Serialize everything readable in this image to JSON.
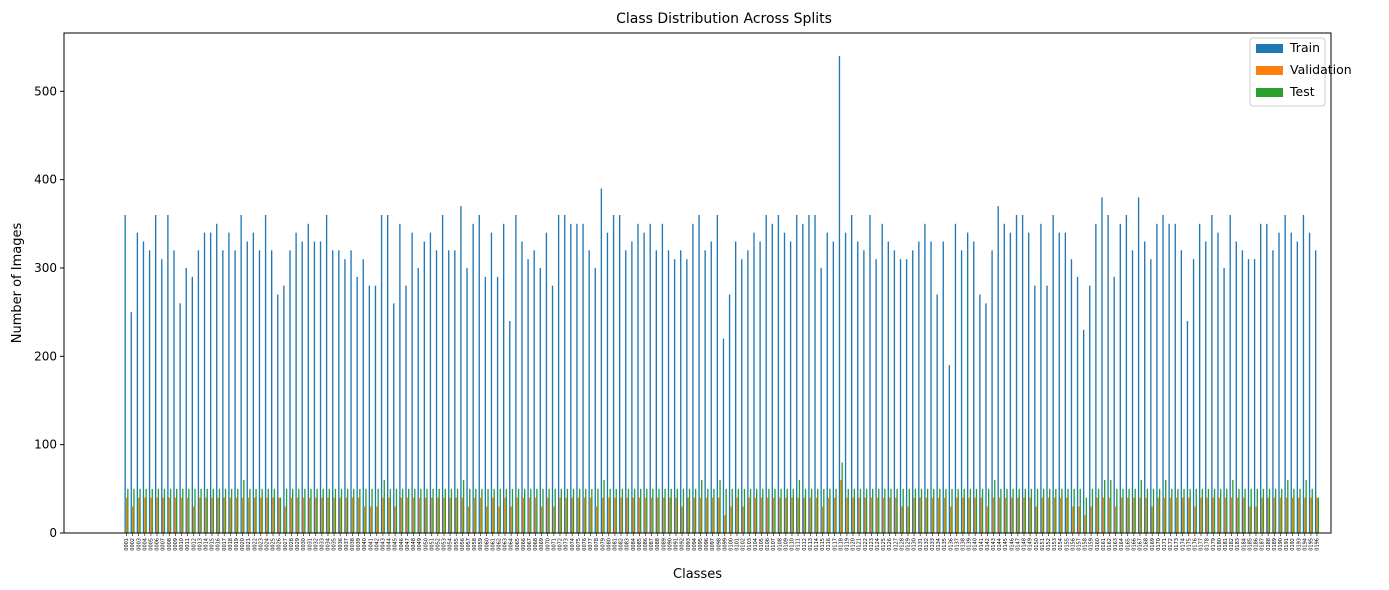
{
  "chart_data": {
    "type": "bar",
    "title": "Class Distribution Across Splits",
    "xlabel": "Classes",
    "ylabel": "Number of Images",
    "ylim": [
      0,
      566
    ],
    "yticks": [
      0,
      100,
      200,
      300,
      400,
      500
    ],
    "grid": false,
    "legend_position": "top-right",
    "colors": {
      "Train": "#1f77b4",
      "Validation": "#ff7f0e",
      "Test": "#2ca02c"
    },
    "categories": [
      "0001",
      "0002",
      "0003",
      "0004",
      "0005",
      "0006",
      "0007",
      "0008",
      "0009",
      "0010",
      "0011",
      "0012",
      "0013",
      "0014",
      "0015",
      "0016",
      "0017",
      "0018",
      "0019",
      "0020",
      "0021",
      "0022",
      "0023",
      "0024",
      "0025",
      "0026",
      "0027",
      "0028",
      "0029",
      "0030",
      "0031",
      "0032",
      "0033",
      "0034",
      "0035",
      "0036",
      "0037",
      "0038",
      "0039",
      "0040",
      "0041",
      "0042",
      "0043",
      "0044",
      "0045",
      "0046",
      "0047",
      "0048",
      "0049",
      "0050",
      "0051",
      "0052",
      "0053",
      "0054",
      "0055",
      "0056",
      "0057",
      "0058",
      "0059",
      "0060",
      "0061",
      "0062",
      "0063",
      "0064",
      "0065",
      "0066",
      "0067",
      "0068",
      "0069",
      "0070",
      "0071",
      "0072",
      "0073",
      "0074",
      "0075",
      "0076",
      "0077",
      "0078",
      "0079",
      "0080",
      "0081",
      "0082",
      "0083",
      "0084",
      "0085",
      "0086",
      "0087",
      "0088",
      "0089",
      "0090",
      "0091",
      "0092",
      "0093",
      "0094",
      "0095",
      "0096",
      "0097",
      "0098",
      "0099",
      "0100",
      "0101",
      "0102",
      "0103",
      "0104",
      "0105",
      "0106",
      "0107",
      "0108",
      "0109",
      "0110",
      "0111",
      "0112",
      "0113",
      "0114",
      "0115",
      "0116",
      "0117",
      "0118",
      "0119",
      "0120",
      "0121",
      "0122",
      "0123",
      "0124",
      "0125",
      "0126",
      "0127",
      "0128",
      "0129",
      "0130",
      "0131",
      "0132",
      "0133",
      "0134",
      "0135",
      "0136",
      "0137",
      "0138",
      "0139",
      "0140",
      "0141",
      "0142",
      "0143",
      "0144",
      "0145",
      "0146",
      "0147",
      "0148",
      "0149",
      "0150",
      "0151",
      "0152",
      "0153",
      "0154",
      "0155",
      "0156",
      "0157",
      "0158",
      "0159",
      "0160",
      "0161",
      "0162",
      "0163",
      "0164",
      "0165",
      "0166",
      "0167",
      "0168",
      "0169",
      "0170",
      "0171",
      "0172",
      "0173",
      "0174",
      "0175",
      "0176",
      "0177",
      "0178",
      "0179",
      "0180",
      "0181",
      "0182",
      "0183",
      "0184",
      "0185",
      "0186",
      "0187",
      "0188",
      "0189",
      "0190",
      "0191",
      "0192",
      "0193",
      "0194",
      "0195",
      "0196"
    ],
    "series": [
      {
        "name": "Train",
        "values": [
          360,
          250,
          340,
          330,
          320,
          360,
          310,
          360,
          320,
          260,
          300,
          290,
          320,
          340,
          340,
          350,
          320,
          340,
          320,
          360,
          330,
          340,
          320,
          360,
          320,
          270,
          280,
          320,
          340,
          330,
          350,
          330,
          330,
          360,
          320,
          320,
          310,
          320,
          290,
          310,
          280,
          280,
          360,
          360,
          260,
          350,
          280,
          340,
          300,
          330,
          340,
          320,
          360,
          320,
          320,
          370,
          300,
          350,
          360,
          290,
          340,
          290,
          350,
          240,
          360,
          330,
          310,
          320,
          300,
          340,
          280,
          360,
          360,
          350,
          350,
          350,
          320,
          300,
          390,
          340,
          360,
          360,
          320,
          330,
          350,
          340,
          350,
          320,
          350,
          320,
          310,
          320,
          310,
          350,
          360,
          320,
          330,
          360,
          220,
          270,
          330,
          310,
          320,
          340,
          330,
          360,
          350,
          360,
          340,
          330,
          360,
          350,
          360,
          360,
          300,
          340,
          330,
          540,
          340,
          360,
          330,
          320,
          360,
          310,
          350,
          330,
          320,
          310,
          310,
          320,
          330,
          350,
          330,
          270,
          330,
          190,
          350,
          320,
          340,
          330,
          270,
          260,
          320,
          370,
          350,
          340,
          360,
          360,
          340,
          280,
          350,
          280,
          360,
          340,
          340,
          310,
          290,
          230,
          280,
          350,
          380,
          360,
          290,
          350,
          360,
          320,
          380,
          330,
          310,
          350,
          360,
          350,
          350,
          320,
          240,
          310,
          350,
          330,
          360,
          340,
          300,
          360,
          330,
          320,
          310,
          310,
          350,
          350,
          320,
          340,
          360,
          340,
          330,
          360,
          340,
          320
        ]
      },
      {
        "name": "Validation",
        "values": [
          40,
          30,
          40,
          40,
          40,
          40,
          40,
          40,
          40,
          40,
          40,
          30,
          40,
          40,
          40,
          40,
          40,
          40,
          40,
          40,
          40,
          40,
          40,
          40,
          40,
          40,
          30,
          40,
          40,
          40,
          40,
          40,
          40,
          40,
          40,
          40,
          40,
          40,
          40,
          30,
          30,
          30,
          40,
          40,
          30,
          40,
          40,
          40,
          40,
          40,
          40,
          40,
          40,
          40,
          40,
          40,
          30,
          40,
          40,
          30,
          40,
          30,
          40,
          30,
          40,
          40,
          40,
          40,
          30,
          40,
          30,
          40,
          40,
          40,
          40,
          40,
          40,
          30,
          40,
          40,
          40,
          40,
          40,
          40,
          40,
          40,
          40,
          40,
          40,
          40,
          40,
          30,
          40,
          40,
          40,
          40,
          40,
          40,
          20,
          30,
          40,
          30,
          40,
          40,
          40,
          40,
          40,
          40,
          40,
          40,
          40,
          40,
          40,
          40,
          30,
          40,
          40,
          60,
          40,
          40,
          40,
          40,
          40,
          40,
          40,
          40,
          40,
          30,
          30,
          40,
          40,
          40,
          40,
          40,
          40,
          30,
          40,
          40,
          40,
          40,
          40,
          30,
          40,
          40,
          40,
          40,
          40,
          40,
          40,
          30,
          40,
          40,
          40,
          40,
          40,
          30,
          30,
          20,
          30,
          40,
          40,
          40,
          30,
          40,
          40,
          40,
          40,
          40,
          30,
          40,
          40,
          40,
          40,
          40,
          40,
          30,
          40,
          40,
          40,
          40,
          40,
          40,
          40,
          40,
          30,
          30,
          40,
          40,
          40,
          40,
          40,
          40,
          40,
          40,
          40,
          40
        ]
      },
      {
        "name": "Test",
        "values": [
          50,
          50,
          50,
          50,
          50,
          50,
          50,
          50,
          50,
          50,
          50,
          50,
          50,
          50,
          50,
          50,
          50,
          50,
          50,
          60,
          50,
          50,
          50,
          50,
          50,
          40,
          50,
          50,
          50,
          50,
          50,
          50,
          50,
          50,
          50,
          50,
          50,
          50,
          50,
          50,
          50,
          50,
          60,
          50,
          50,
          50,
          50,
          50,
          50,
          50,
          50,
          50,
          50,
          50,
          50,
          60,
          50,
          50,
          50,
          50,
          50,
          50,
          50,
          50,
          50,
          50,
          50,
          50,
          50,
          50,
          50,
          50,
          50,
          50,
          50,
          50,
          50,
          50,
          60,
          50,
          50,
          50,
          50,
          50,
          50,
          50,
          50,
          50,
          50,
          50,
          50,
          50,
          50,
          50,
          60,
          50,
          50,
          60,
          50,
          50,
          50,
          50,
          50,
          50,
          50,
          50,
          50,
          50,
          50,
          50,
          60,
          50,
          50,
          50,
          50,
          50,
          50,
          80,
          50,
          50,
          50,
          50,
          50,
          50,
          50,
          50,
          50,
          50,
          50,
          50,
          50,
          50,
          50,
          50,
          50,
          50,
          50,
          50,
          50,
          50,
          50,
          50,
          60,
          50,
          50,
          50,
          50,
          50,
          50,
          50,
          50,
          50,
          50,
          50,
          50,
          50,
          50,
          40,
          50,
          50,
          60,
          60,
          50,
          50,
          50,
          50,
          60,
          50,
          50,
          50,
          60,
          50,
          50,
          50,
          50,
          50,
          50,
          50,
          50,
          50,
          50,
          60,
          50,
          50,
          50,
          50,
          50,
          50,
          50,
          50,
          60,
          50,
          50,
          60,
          50,
          40
        ]
      }
    ]
  }
}
